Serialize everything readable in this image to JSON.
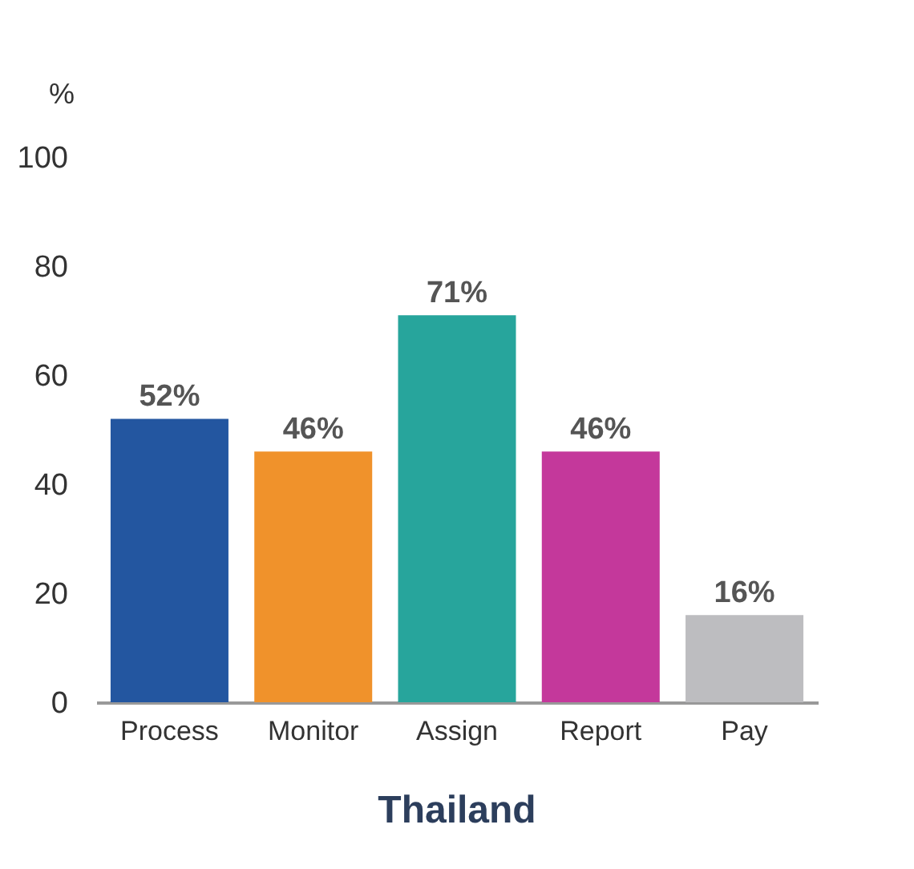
{
  "chart_data": {
    "type": "bar",
    "title": "Thailand",
    "ylabel": "%",
    "categories": [
      "Process",
      "Monitor",
      "Assign",
      "Report",
      "Pay"
    ],
    "values": [
      52,
      46,
      71,
      46,
      16
    ],
    "colors": [
      "#2356a0",
      "#f0922b",
      "#27a59c",
      "#c4389b",
      "#bdbdc0"
    ],
    "value_labels": [
      "52%",
      "46%",
      "71%",
      "46%",
      "16%"
    ],
    "ylim": [
      0,
      100
    ],
    "yticks": [
      0,
      20,
      40,
      60,
      80,
      100
    ],
    "grid": false
  }
}
